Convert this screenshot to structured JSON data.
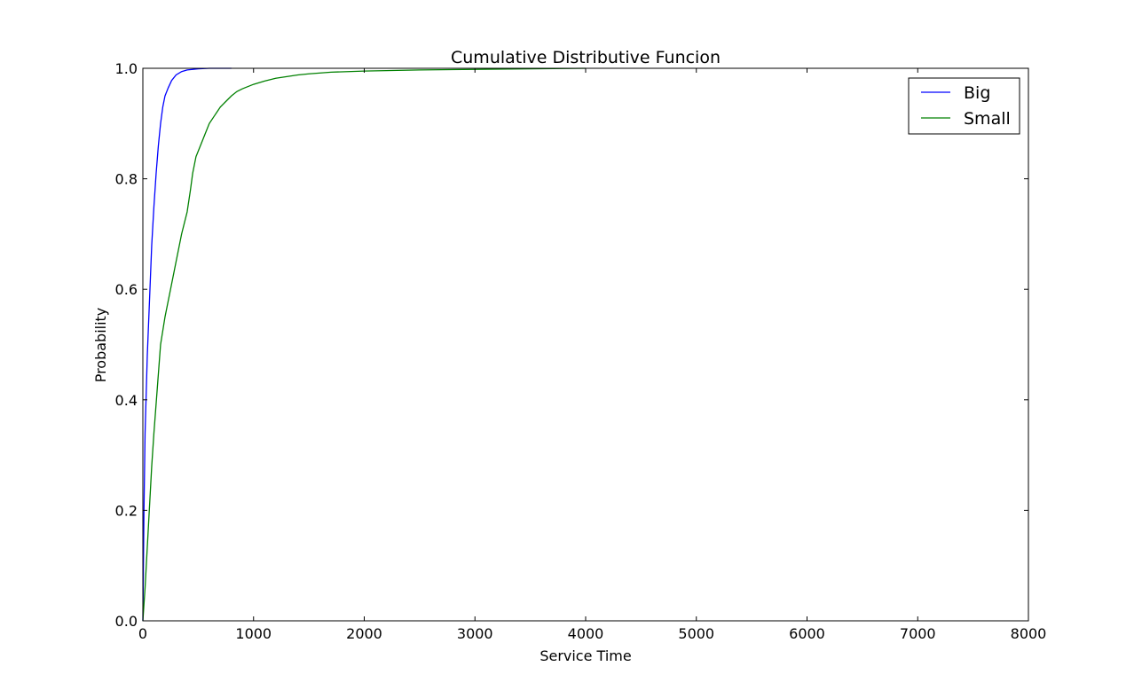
{
  "chart_data": {
    "type": "line",
    "title": "Cumulative Distributive Funcion",
    "xlabel": "Service Time",
    "ylabel": "Probability",
    "xlim": [
      0,
      8000
    ],
    "ylim": [
      0.0,
      1.0
    ],
    "xticks": [
      0,
      1000,
      2000,
      3000,
      4000,
      5000,
      6000,
      7000,
      8000
    ],
    "xtick_labels": [
      "0",
      "1000",
      "2000",
      "3000",
      "4000",
      "5000",
      "6000",
      "7000",
      "8000"
    ],
    "yticks": [
      0.0,
      0.2,
      0.4,
      0.6,
      0.8,
      1.0
    ],
    "ytick_labels": [
      "0.0",
      "0.2",
      "0.4",
      "0.6",
      "0.8",
      "1.0"
    ],
    "grid": false,
    "legend_position": "top-right",
    "series": [
      {
        "name": "Big",
        "color": "#0000ff",
        "x": [
          0,
          10,
          20,
          40,
          60,
          80,
          100,
          120,
          140,
          160,
          180,
          200,
          230,
          260,
          300,
          350,
          400,
          500,
          600,
          800
        ],
        "y": [
          0.0,
          0.2,
          0.34,
          0.48,
          0.58,
          0.68,
          0.75,
          0.81,
          0.86,
          0.9,
          0.93,
          0.95,
          0.965,
          0.978,
          0.988,
          0.994,
          0.997,
          0.999,
          1.0,
          1.0
        ]
      },
      {
        "name": "Small",
        "color": "#008000",
        "x": [
          0,
          20,
          50,
          80,
          100,
          130,
          160,
          200,
          250,
          300,
          350,
          400,
          430,
          450,
          480,
          520,
          560,
          600,
          650,
          700,
          750,
          800,
          850,
          900,
          1000,
          1100,
          1200,
          1300,
          1400,
          1500,
          1700,
          2000,
          2500,
          3000,
          3500,
          4000
        ],
        "y": [
          0.0,
          0.06,
          0.17,
          0.28,
          0.34,
          0.42,
          0.5,
          0.55,
          0.6,
          0.65,
          0.7,
          0.74,
          0.78,
          0.81,
          0.84,
          0.86,
          0.88,
          0.9,
          0.915,
          0.93,
          0.94,
          0.95,
          0.958,
          0.963,
          0.971,
          0.977,
          0.982,
          0.985,
          0.988,
          0.99,
          0.993,
          0.995,
          0.997,
          0.998,
          0.999,
          1.0
        ]
      }
    ]
  }
}
